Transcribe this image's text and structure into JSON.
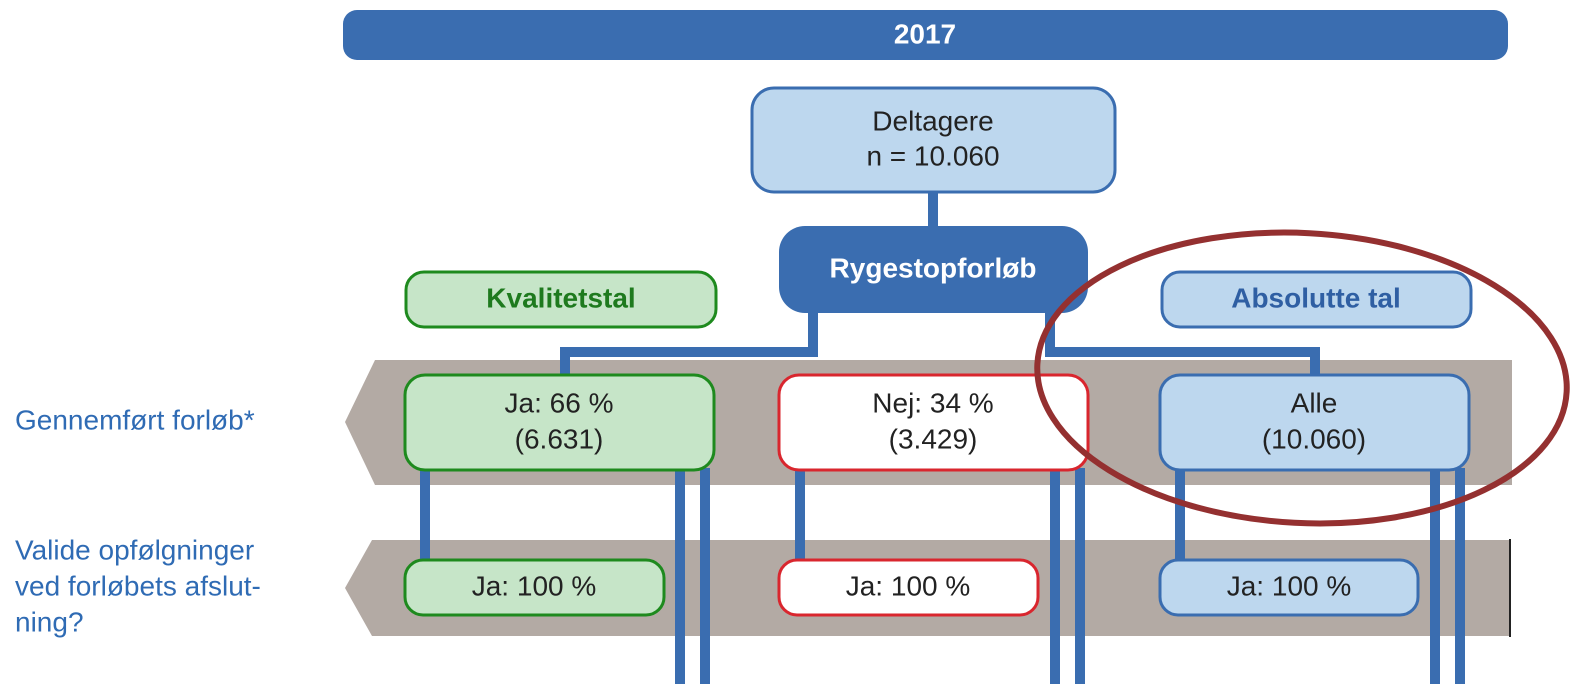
{
  "header": {
    "title": "2017"
  },
  "nodes": {
    "root": {
      "line1": "Deltagere",
      "line2": "n = 10.060"
    },
    "hub": {
      "label": "Rygestopforløb"
    },
    "quality_label": {
      "label": "Kvalitetstal"
    },
    "absolute_label": {
      "label": "Absolutte tal"
    },
    "row1": [
      {
        "line1": "Ja: 66 %",
        "line2": "(6.631)"
      },
      {
        "line1": "Nej: 34 %",
        "line2": "(3.429)"
      },
      {
        "line1": "Alle",
        "line2": "(10.060)"
      }
    ],
    "row2": [
      {
        "label": "Ja: 100 %"
      },
      {
        "label": "Ja: 100 %"
      },
      {
        "label": "Ja: 100 %"
      }
    ]
  },
  "row_labels": {
    "row1": "Gennemført forløb*",
    "row2": [
      "Valide opfølgninger",
      "ved forløbets afslut-",
      "ning?"
    ]
  }
}
